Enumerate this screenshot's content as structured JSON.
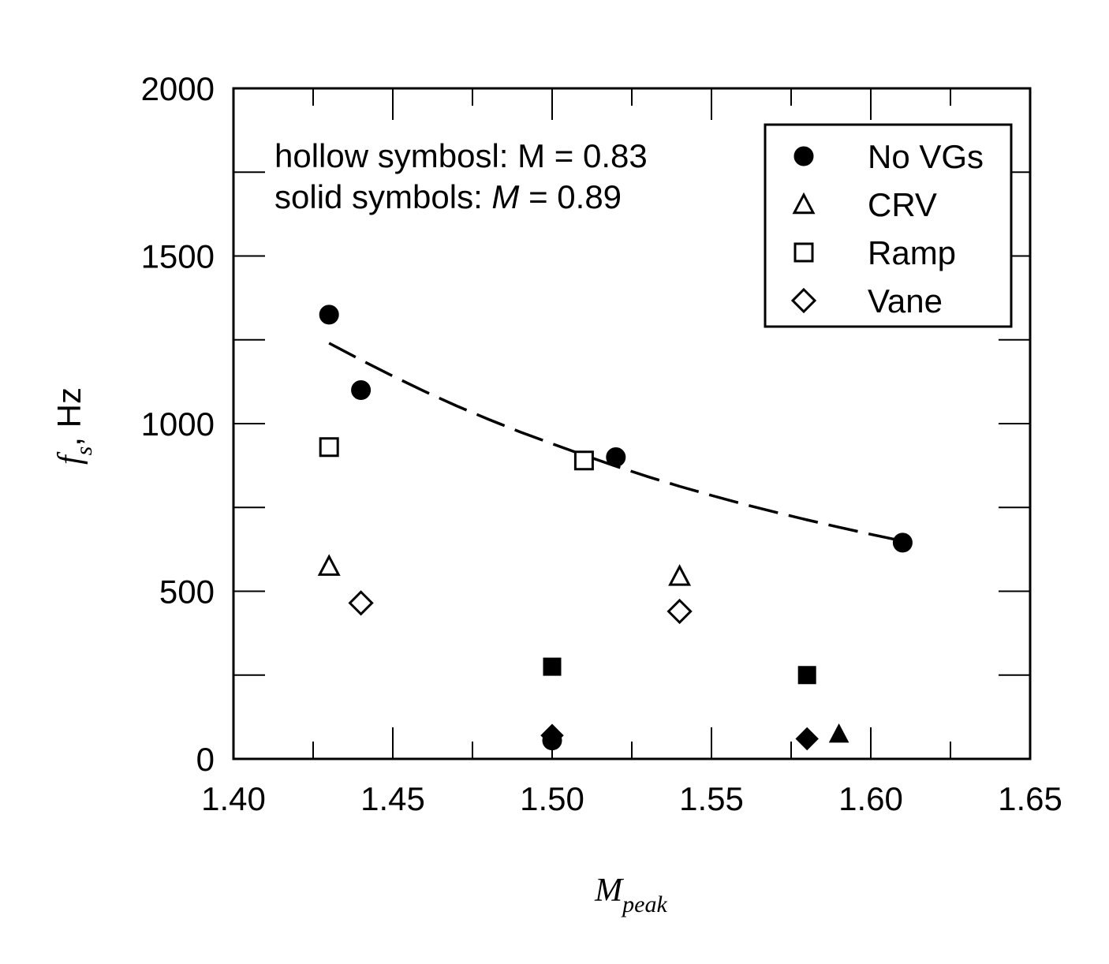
{
  "chart_data": {
    "type": "scatter",
    "xlabel": {
      "main": "M",
      "sub": "peak"
    },
    "ylabel": {
      "main": "f",
      "sub": "s",
      "rest": ", Hz"
    },
    "xlim": [
      1.4,
      1.65
    ],
    "ylim": [
      0,
      2000
    ],
    "x_ticks": [
      1.4,
      1.45,
      1.5,
      1.55,
      1.6,
      1.65
    ],
    "x_tick_labels": [
      "1.40",
      "1.45",
      "1.50",
      "1.55",
      "1.60",
      "1.65"
    ],
    "y_ticks": [
      0,
      500,
      1000,
      1500,
      2000
    ],
    "y_tick_labels": [
      "0",
      "500",
      "1000",
      "1500",
      "2000"
    ],
    "y_minor_ticks": [
      250,
      750,
      1250,
      1750
    ],
    "grid": false,
    "legend_position": "top-right",
    "annotations": [
      {
        "segments": [
          {
            "text": "hollow symbosl: M = 0.83",
            "italic": false
          }
        ]
      },
      {
        "segments": [
          {
            "text": "solid symbols: ",
            "italic": false
          },
          {
            "text": "M",
            "italic": true
          },
          {
            "text": " = 0.89",
            "italic": false
          }
        ]
      }
    ],
    "series": [
      {
        "name": "No VGs",
        "marker": "circle",
        "points": [
          {
            "x": 1.43,
            "y": 1325,
            "filled": true
          },
          {
            "x": 1.44,
            "y": 1100,
            "filled": true
          },
          {
            "x": 1.52,
            "y": 900,
            "filled": true
          },
          {
            "x": 1.61,
            "y": 645,
            "filled": true
          },
          {
            "x": 1.5,
            "y": 55,
            "filled": true
          }
        ]
      },
      {
        "name": "CRV",
        "marker": "triangle",
        "points": [
          {
            "x": 1.43,
            "y": 575,
            "filled": false
          },
          {
            "x": 1.54,
            "y": 545,
            "filled": false
          },
          {
            "x": 1.59,
            "y": 75,
            "filled": true
          }
        ]
      },
      {
        "name": "Ramp",
        "marker": "square",
        "points": [
          {
            "x": 1.43,
            "y": 930,
            "filled": false
          },
          {
            "x": 1.51,
            "y": 890,
            "filled": false
          },
          {
            "x": 1.5,
            "y": 275,
            "filled": true
          },
          {
            "x": 1.58,
            "y": 250,
            "filled": true
          }
        ]
      },
      {
        "name": "Vane",
        "marker": "diamond",
        "points": [
          {
            "x": 1.44,
            "y": 465,
            "filled": false
          },
          {
            "x": 1.54,
            "y": 440,
            "filled": false
          },
          {
            "x": 1.5,
            "y": 70,
            "filled": true
          },
          {
            "x": 1.58,
            "y": 60,
            "filled": true
          }
        ]
      }
    ],
    "fit_curve": {
      "style": "dashed",
      "x": [
        1.43,
        1.44,
        1.45,
        1.46,
        1.47,
        1.48,
        1.49,
        1.5,
        1.51,
        1.52,
        1.53,
        1.54,
        1.55,
        1.56,
        1.57,
        1.58,
        1.59,
        1.6,
        1.61
      ],
      "y": [
        1240,
        1190,
        1142,
        1096,
        1053,
        1013,
        975,
        940,
        906,
        873,
        842,
        813,
        786,
        760,
        736,
        713,
        691,
        670,
        650
      ]
    }
  }
}
